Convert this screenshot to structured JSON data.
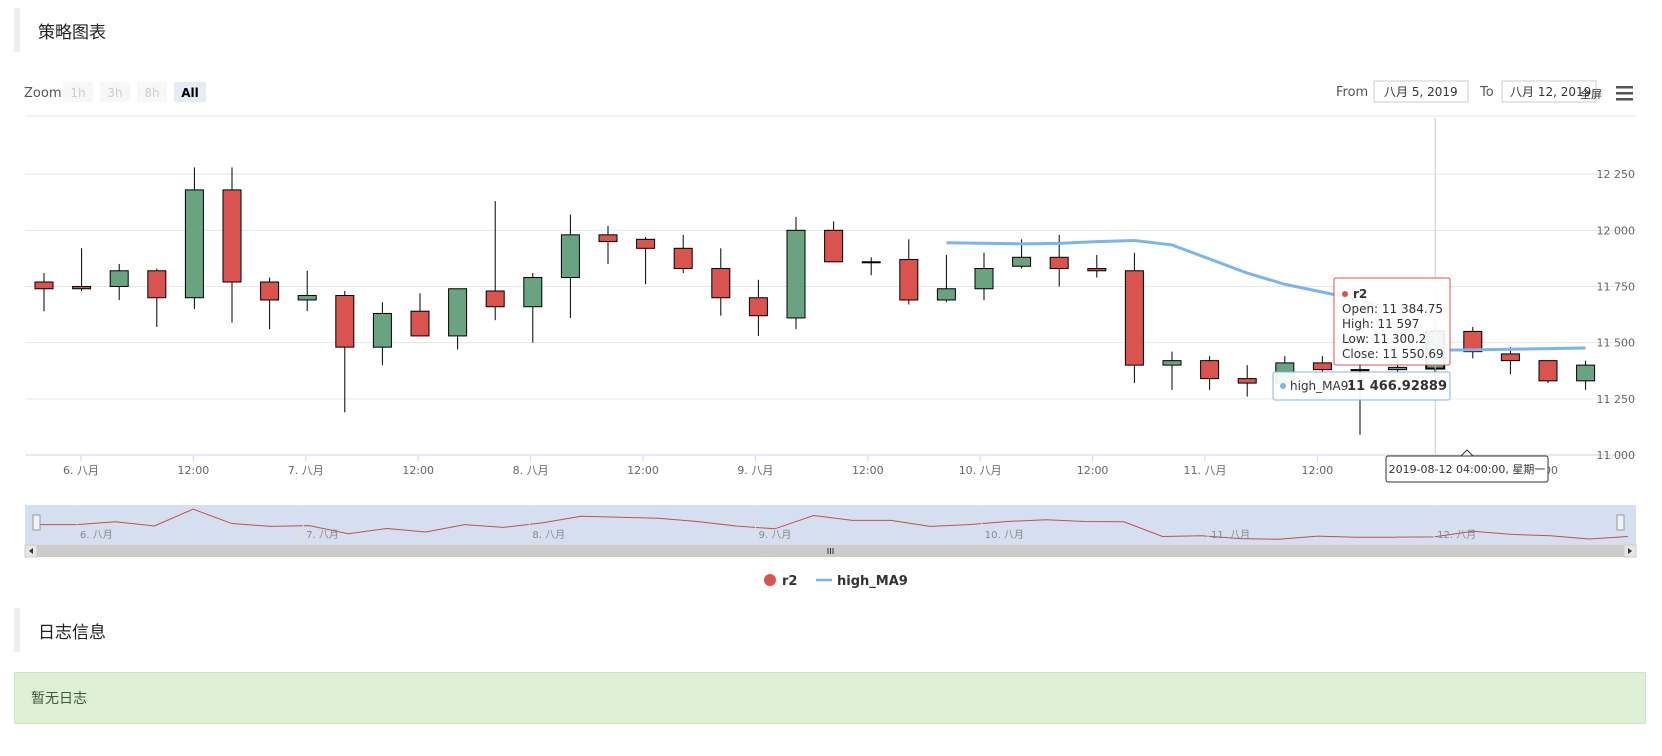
{
  "headers": {
    "chart_section": "策略图表",
    "log_section": "日志信息"
  },
  "log": {
    "empty_message": "暂无日志"
  },
  "toolbar": {
    "zoom_label": "Zoom",
    "zoom_buttons": [
      "1h",
      "3h",
      "8h",
      "All"
    ],
    "zoom_active": "All",
    "from_label": "From",
    "from_value": "八月 5, 2019",
    "to_label": "To",
    "to_value": "八月 12, 2019",
    "fullscreen_label": "全屏",
    "menu_icon": "hamburger-menu-icon"
  },
  "colors": {
    "up": "#6aa37f",
    "down": "#d9534f",
    "ma_line": "#7cb5ec",
    "navigator_fill": "#d6dff0"
  },
  "tooltip": {
    "series_name": "r2",
    "open": "Open: 11 384.75",
    "high": "High: 11 597",
    "low": "Low: 11 300.2",
    "close": "Close: 11 550.69",
    "ma_label": "high_MA9:",
    "ma_value": "11 466.92889",
    "time": "2019-08-12 04:00:00, 星期一"
  },
  "chart_data": {
    "type": "candlestick",
    "y_ticks": [
      "12 250",
      "12 000",
      "11 750",
      "11 500",
      "11 250",
      "11 000"
    ],
    "ylim": [
      11000,
      12500
    ],
    "x_ticks": [
      "6. 八月",
      "12:00",
      "7. 八月",
      "12:00",
      "8. 八月",
      "12:00",
      "9. 八月",
      "12:00",
      "10. 八月",
      "12:00",
      "11. 八月",
      "12:00",
      "12. 八月",
      "12:00"
    ],
    "navigator_labels": [
      "6. 八月",
      "7. 八月",
      "8. 八月",
      "9. 八月",
      "10. 八月",
      "11. 八月",
      "12. 八月"
    ],
    "legend": [
      "r2",
      "high_MA9"
    ],
    "candles": [
      {
        "o": 11770,
        "h": 11810,
        "l": 11640,
        "c": 11740
      },
      {
        "o": 11750,
        "h": 11920,
        "l": 11730,
        "c": 11740
      },
      {
        "o": 11750,
        "h": 11850,
        "l": 11690,
        "c": 11820
      },
      {
        "o": 11820,
        "h": 11830,
        "l": 11570,
        "c": 11700
      },
      {
        "o": 11700,
        "h": 12280,
        "l": 11650,
        "c": 12180
      },
      {
        "o": 12180,
        "h": 12280,
        "l": 11590,
        "c": 11770
      },
      {
        "o": 11770,
        "h": 11790,
        "l": 11560,
        "c": 11690
      },
      {
        "o": 11690,
        "h": 11820,
        "l": 11640,
        "c": 11710
      },
      {
        "o": 11710,
        "h": 11730,
        "l": 11190,
        "c": 11480
      },
      {
        "o": 11480,
        "h": 11680,
        "l": 11400,
        "c": 11630
      },
      {
        "o": 11640,
        "h": 11720,
        "l": 11530,
        "c": 11530
      },
      {
        "o": 11530,
        "h": 11740,
        "l": 11470,
        "c": 11740
      },
      {
        "o": 11730,
        "h": 12130,
        "l": 11600,
        "c": 11660
      },
      {
        "o": 11660,
        "h": 11810,
        "l": 11500,
        "c": 11790
      },
      {
        "o": 11790,
        "h": 12070,
        "l": 11610,
        "c": 11980
      },
      {
        "o": 11980,
        "h": 12020,
        "l": 11850,
        "c": 11950
      },
      {
        "o": 11960,
        "h": 11970,
        "l": 11760,
        "c": 11920
      },
      {
        "o": 11920,
        "h": 11980,
        "l": 11810,
        "c": 11830
      },
      {
        "o": 11830,
        "h": 11920,
        "l": 11620,
        "c": 11700
      },
      {
        "o": 11700,
        "h": 11780,
        "l": 11530,
        "c": 11620
      },
      {
        "o": 11610,
        "h": 12060,
        "l": 11560,
        "c": 12000
      },
      {
        "o": 12000,
        "h": 12040,
        "l": 11860,
        "c": 11860
      },
      {
        "o": 11860,
        "h": 11880,
        "l": 11800,
        "c": 11860
      },
      {
        "o": 11870,
        "h": 11960,
        "l": 11670,
        "c": 11690
      },
      {
        "o": 11690,
        "h": 11890,
        "l": 11680,
        "c": 11740
      },
      {
        "o": 11740,
        "h": 11900,
        "l": 11690,
        "c": 11830
      },
      {
        "o": 11840,
        "h": 11960,
        "l": 11830,
        "c": 11880
      },
      {
        "o": 11880,
        "h": 11980,
        "l": 11750,
        "c": 11830
      },
      {
        "o": 11830,
        "h": 11890,
        "l": 11790,
        "c": 11820
      },
      {
        "o": 11820,
        "h": 11900,
        "l": 11320,
        "c": 11400
      },
      {
        "o": 11400,
        "h": 11460,
        "l": 11290,
        "c": 11420
      },
      {
        "o": 11420,
        "h": 11440,
        "l": 11290,
        "c": 11340
      },
      {
        "o": 11340,
        "h": 11400,
        "l": 11260,
        "c": 11320
      },
      {
        "o": 11320,
        "h": 11440,
        "l": 11290,
        "c": 11410
      },
      {
        "o": 11410,
        "h": 11440,
        "l": 11330,
        "c": 11380
      },
      {
        "o": 11380,
        "h": 11410,
        "l": 11090,
        "c": 11380
      },
      {
        "o": 11380,
        "h": 11440,
        "l": 11340,
        "c": 11390
      },
      {
        "o": 11384.75,
        "h": 11597,
        "l": 11300.2,
        "c": 11550.69
      },
      {
        "o": 11550,
        "h": 11570,
        "l": 11430,
        "c": 11460
      },
      {
        "o": 11450,
        "h": 11480,
        "l": 11360,
        "c": 11420
      },
      {
        "o": 11420,
        "h": 11420,
        "l": 11320,
        "c": 11330
      },
      {
        "o": 11330,
        "h": 11420,
        "l": 11290,
        "c": 11400
      }
    ],
    "ma_series": {
      "name": "high_MA9",
      "points": [
        {
          "i": 24,
          "v": 11945
        },
        {
          "i": 26,
          "v": 11940
        },
        {
          "i": 27,
          "v": 11942
        },
        {
          "i": 28,
          "v": 11950
        },
        {
          "i": 29,
          "v": 11955
        },
        {
          "i": 30,
          "v": 11935
        },
        {
          "i": 32,
          "v": 11810
        },
        {
          "i": 33,
          "v": 11760
        },
        {
          "i": 35,
          "v": 11690
        },
        {
          "i": 36,
          "v": 11640
        },
        {
          "i": 37,
          "v": 11466.92889
        },
        {
          "i": 38,
          "v": 11468
        },
        {
          "i": 41,
          "v": 11476
        }
      ]
    }
  }
}
